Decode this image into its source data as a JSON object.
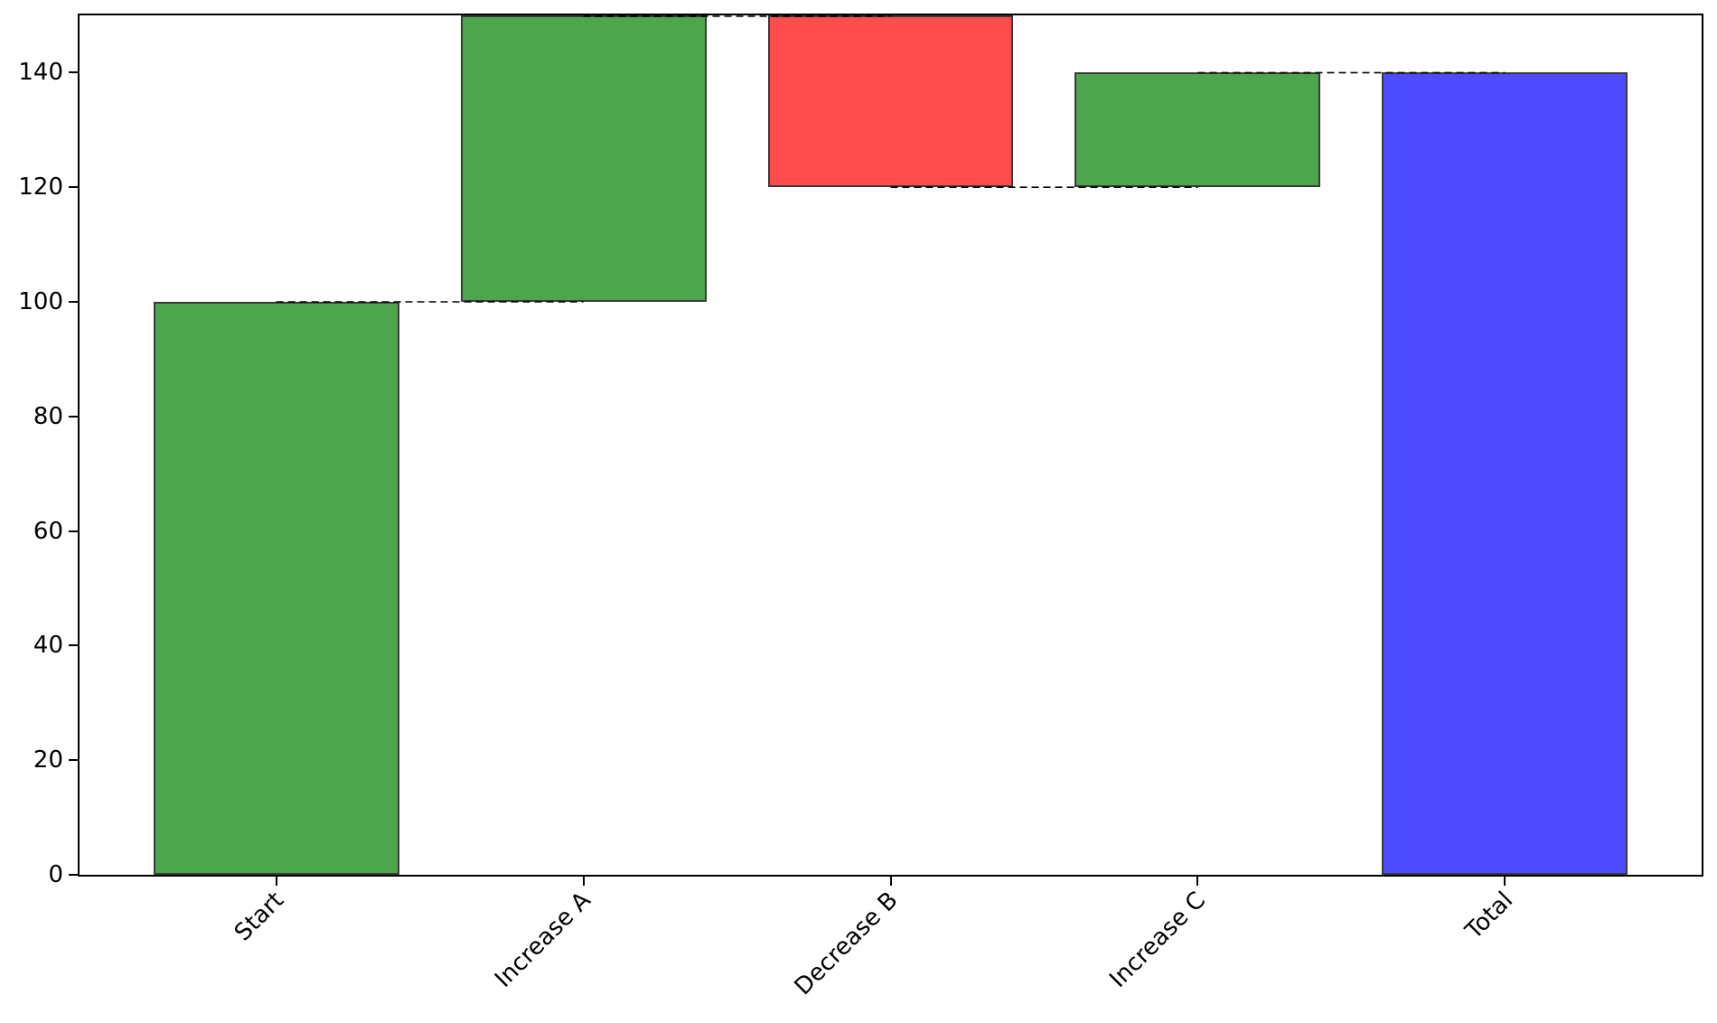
{
  "chart_data": {
    "type": "bar",
    "subtype": "waterfall",
    "title": "",
    "xlabel": "",
    "ylabel": "",
    "categories": [
      "Start",
      "Increase A",
      "Decrease B",
      "Increase C",
      "Total"
    ],
    "values": [
      100,
      50,
      -30,
      20,
      140
    ],
    "bar_segments": [
      {
        "label": "Start",
        "from": 0,
        "to": 100,
        "role": "increase"
      },
      {
        "label": "Increase A",
        "from": 100,
        "to": 150,
        "role": "increase"
      },
      {
        "label": "Decrease B",
        "from": 150,
        "to": 120,
        "role": "decrease"
      },
      {
        "label": "Increase C",
        "from": 120,
        "to": 140,
        "role": "increase"
      },
      {
        "label": "Total",
        "from": 0,
        "to": 140,
        "role": "total"
      }
    ],
    "connectors": [
      {
        "from_index": 0,
        "to_index": 1,
        "level": 100
      },
      {
        "from_index": 1,
        "to_index": 2,
        "level": 150
      },
      {
        "from_index": 2,
        "to_index": 3,
        "level": 120
      },
      {
        "from_index": 3,
        "to_index": 4,
        "level": 140
      }
    ],
    "ylim": [
      0,
      150
    ],
    "yticks": [
      0,
      20,
      40,
      60,
      80,
      100,
      120,
      140
    ],
    "xlim": [
      -0.64,
      4.64
    ],
    "bar_width": 0.8,
    "xtick_rotation_deg": 45,
    "grid": false,
    "legend": null,
    "colors": {
      "increase": "#4DA64D",
      "decrease": "#FF4D4D",
      "total": "#4D4DFF",
      "bar_edge": "#3A3A3A",
      "spine": "#000000",
      "connector": "#000000",
      "tick_text": "#000000",
      "background": "#FFFFFF"
    }
  }
}
